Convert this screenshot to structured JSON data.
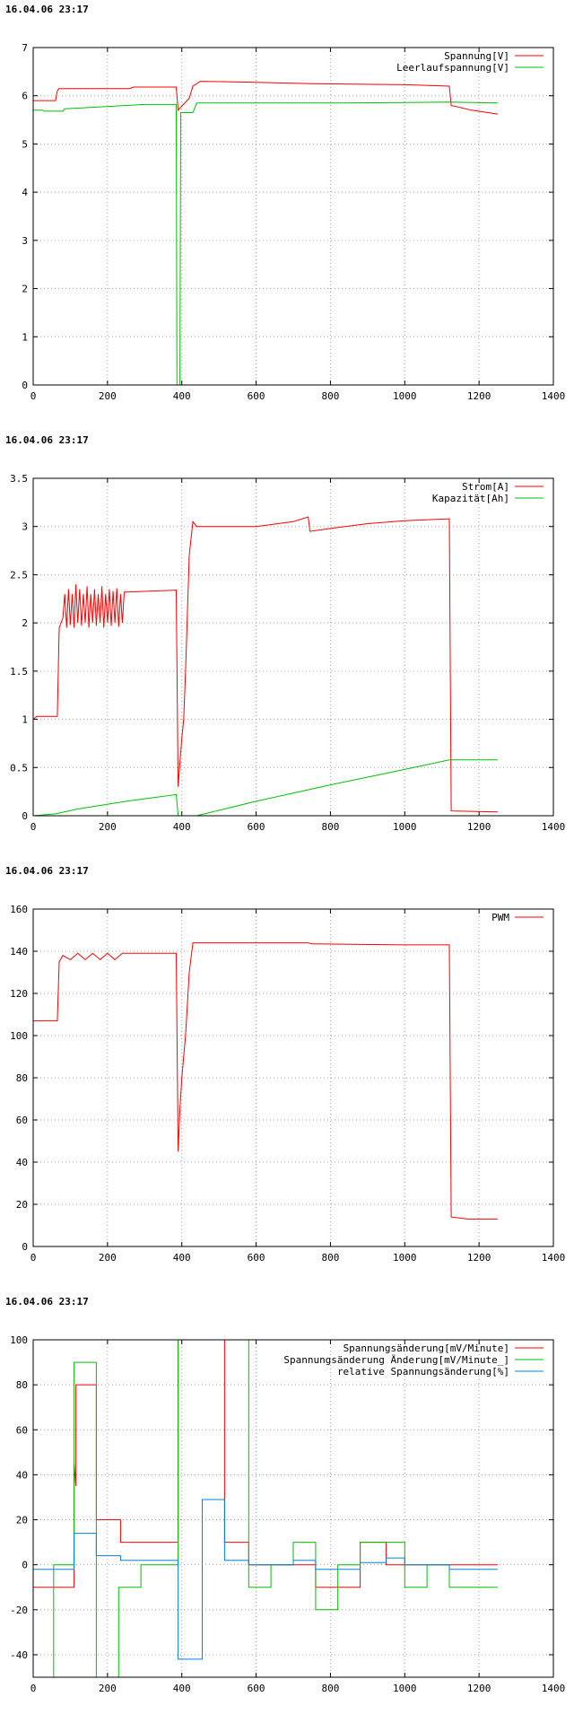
{
  "chart_data": [
    {
      "type": "line",
      "timestamp": "16.04.06 23:17",
      "xlim": [
        0,
        1400
      ],
      "ylim": [
        0,
        7
      ],
      "xticks": [
        0,
        200,
        400,
        600,
        800,
        1000,
        1200,
        1400
      ],
      "yticks": [
        0,
        1,
        2,
        3,
        4,
        5,
        6,
        7
      ],
      "legend_position": "top-right",
      "grid": true,
      "series": [
        {
          "name": "Spannung[V]",
          "color": "#ff0000",
          "points": [
            [
              0,
              5.9
            ],
            [
              60,
              5.9
            ],
            [
              65,
              6.1
            ],
            [
              70,
              6.15
            ],
            [
              260,
              6.15
            ],
            [
              270,
              6.18
            ],
            [
              385,
              6.18
            ],
            [
              390,
              5.7
            ],
            [
              420,
              5.95
            ],
            [
              430,
              6.2
            ],
            [
              450,
              6.3
            ],
            [
              600,
              6.28
            ],
            [
              750,
              6.25
            ],
            [
              1000,
              6.23
            ],
            [
              1120,
              6.2
            ],
            [
              1125,
              5.8
            ],
            [
              1180,
              5.7
            ],
            [
              1250,
              5.62
            ]
          ]
        },
        {
          "name": "Leerlaufspannung[V]",
          "color": "#00c000",
          "points": [
            [
              0,
              5.7
            ],
            [
              25,
              5.7
            ],
            [
              30,
              5.68
            ],
            [
              80,
              5.68
            ],
            [
              85,
              5.73
            ],
            [
              300,
              5.82
            ],
            [
              385,
              5.82
            ],
            [
              387,
              0
            ],
            [
              395,
              0
            ],
            [
              397,
              5.65
            ],
            [
              430,
              5.65
            ],
            [
              440,
              5.85
            ],
            [
              800,
              5.85
            ],
            [
              1000,
              5.86
            ],
            [
              1120,
              5.87
            ],
            [
              1250,
              5.85
            ]
          ]
        }
      ]
    },
    {
      "type": "line",
      "timestamp": "16.04.06 23:17",
      "xlim": [
        0,
        1400
      ],
      "ylim": [
        0,
        3.5
      ],
      "xticks": [
        0,
        200,
        400,
        600,
        800,
        1000,
        1200,
        1400
      ],
      "yticks": [
        0,
        0.5,
        1,
        1.5,
        2,
        2.5,
        3,
        3.5
      ],
      "legend_position": "top-right",
      "grid": true,
      "series": [
        {
          "name": "Strom[A]",
          "color": "#ff0000",
          "points": [
            [
              0,
              1
            ],
            [
              10,
              1.03
            ],
            [
              65,
              1.03
            ],
            [
              70,
              1.95
            ],
            [
              80,
              2.05
            ],
            [
              85,
              2.3
            ],
            [
              90,
              1.95
            ],
            [
              95,
              2.35
            ],
            [
              100,
              1.98
            ],
            [
              105,
              2.3
            ],
            [
              110,
              1.95
            ],
            [
              115,
              2.4
            ],
            [
              120,
              2.0
            ],
            [
              125,
              2.35
            ],
            [
              130,
              1.97
            ],
            [
              135,
              2.3
            ],
            [
              140,
              2.0
            ],
            [
              145,
              2.38
            ],
            [
              150,
              1.95
            ],
            [
              155,
              2.3
            ],
            [
              160,
              2.0
            ],
            [
              165,
              2.35
            ],
            [
              170,
              1.97
            ],
            [
              175,
              2.3
            ],
            [
              180,
              2.0
            ],
            [
              185,
              2.38
            ],
            [
              190,
              1.95
            ],
            [
              195,
              2.3
            ],
            [
              200,
              2.0
            ],
            [
              205,
              2.35
            ],
            [
              210,
              1.97
            ],
            [
              215,
              2.33
            ],
            [
              220,
              2.0
            ],
            [
              225,
              2.36
            ],
            [
              230,
              1.96
            ],
            [
              235,
              2.3
            ],
            [
              240,
              2.0
            ],
            [
              245,
              2.32
            ],
            [
              250,
              2.32
            ],
            [
              385,
              2.34
            ],
            [
              390,
              0.3
            ],
            [
              395,
              0.55
            ],
            [
              400,
              0.8
            ],
            [
              405,
              1.0
            ],
            [
              410,
              1.5
            ],
            [
              420,
              2.7
            ],
            [
              430,
              3.05
            ],
            [
              440,
              3.0
            ],
            [
              600,
              3.0
            ],
            [
              700,
              3.05
            ],
            [
              740,
              3.1
            ],
            [
              745,
              2.95
            ],
            [
              800,
              2.98
            ],
            [
              900,
              3.03
            ],
            [
              1000,
              3.06
            ],
            [
              1120,
              3.08
            ],
            [
              1125,
              0.05
            ],
            [
              1250,
              0.04
            ]
          ]
        },
        {
          "name": "Kapazität[Ah]",
          "color": "#00c000",
          "points": [
            [
              0,
              0
            ],
            [
              60,
              0.02
            ],
            [
              120,
              0.07
            ],
            [
              250,
              0.15
            ],
            [
              385,
              0.22
            ],
            [
              390,
              0
            ],
            [
              440,
              0
            ],
            [
              600,
              0.15
            ],
            [
              800,
              0.32
            ],
            [
              1000,
              0.48
            ],
            [
              1120,
              0.58
            ],
            [
              1250,
              0.58
            ]
          ]
        }
      ]
    },
    {
      "type": "line",
      "timestamp": "16.04.06 23:17",
      "xlim": [
        0,
        1400
      ],
      "ylim": [
        0,
        160
      ],
      "xticks": [
        0,
        200,
        400,
        600,
        800,
        1000,
        1200,
        1400
      ],
      "yticks": [
        0,
        20,
        40,
        60,
        80,
        100,
        120,
        140,
        160
      ],
      "legend_position": "top-right",
      "grid": true,
      "series": [
        {
          "name": "PWM",
          "color": "#ff0000",
          "points": [
            [
              0,
              107
            ],
            [
              65,
              107
            ],
            [
              70,
              135
            ],
            [
              80,
              138
            ],
            [
              100,
              136
            ],
            [
              120,
              139
            ],
            [
              140,
              136
            ],
            [
              160,
              139
            ],
            [
              180,
              136
            ],
            [
              200,
              139
            ],
            [
              220,
              136
            ],
            [
              240,
              139
            ],
            [
              260,
              139
            ],
            [
              385,
              139
            ],
            [
              390,
              45
            ],
            [
              395,
              65
            ],
            [
              400,
              80
            ],
            [
              410,
              100
            ],
            [
              420,
              130
            ],
            [
              430,
              144
            ],
            [
              600,
              144
            ],
            [
              740,
              144
            ],
            [
              750,
              143.5
            ],
            [
              1000,
              143
            ],
            [
              1120,
              143
            ],
            [
              1125,
              14
            ],
            [
              1170,
              13
            ],
            [
              1250,
              13
            ]
          ]
        }
      ]
    },
    {
      "type": "line",
      "timestamp": "16.04.06 23:17",
      "xlim": [
        0,
        1400
      ],
      "ylim": [
        -50,
        100
      ],
      "xticks": [
        0,
        200,
        400,
        600,
        800,
        1000,
        1200,
        1400
      ],
      "yticks": [
        -40,
        -20,
        0,
        20,
        40,
        60,
        80,
        100
      ],
      "legend_position": "top-right",
      "grid": true,
      "series": [
        {
          "name": "Spannungsänderung[mV/Minute]",
          "color": "#ff0000",
          "points": [
            [
              0,
              -10
            ],
            [
              110,
              -10
            ],
            [
              110,
              45
            ],
            [
              115,
              35
            ],
            [
              115,
              80
            ],
            [
              170,
              80
            ],
            [
              170,
              20
            ],
            [
              235,
              20
            ],
            [
              235,
              10
            ],
            [
              390,
              10
            ],
            [
              390,
              100
            ],
            [
              510,
              100
            ],
            [
              515,
              100
            ],
            [
              515,
              10
            ],
            [
              580,
              10
            ],
            [
              580,
              0
            ],
            [
              760,
              0
            ],
            [
              760,
              -10
            ],
            [
              880,
              -10
            ],
            [
              880,
              10
            ],
            [
              950,
              10
            ],
            [
              950,
              0
            ],
            [
              1250,
              0
            ]
          ]
        },
        {
          "name": "Spannungsänderung Änderung[mV/Minute_]",
          "color": "#00c000",
          "points": [
            [
              0,
              -50
            ],
            [
              55,
              -50
            ],
            [
              55,
              0
            ],
            [
              110,
              0
            ],
            [
              110,
              90
            ],
            [
              170,
              90
            ],
            [
              170,
              -50
            ],
            [
              230,
              -50
            ],
            [
              230,
              -10
            ],
            [
              290,
              -10
            ],
            [
              290,
              0
            ],
            [
              390,
              0
            ],
            [
              390,
              100
            ],
            [
              580,
              100
            ],
            [
              580,
              -10
            ],
            [
              640,
              -10
            ],
            [
              640,
              0
            ],
            [
              700,
              0
            ],
            [
              700,
              10
            ],
            [
              760,
              10
            ],
            [
              760,
              -20
            ],
            [
              820,
              -20
            ],
            [
              820,
              0
            ],
            [
              880,
              0
            ],
            [
              880,
              10
            ],
            [
              1000,
              10
            ],
            [
              1000,
              -10
            ],
            [
              1060,
              -10
            ],
            [
              1060,
              0
            ],
            [
              1120,
              0
            ],
            [
              1120,
              -10
            ],
            [
              1250,
              -10
            ]
          ]
        },
        {
          "name": "relative Spannungsänderung[%]",
          "color": "#0080e0",
          "points": [
            [
              0,
              -2
            ],
            [
              110,
              -2
            ],
            [
              110,
              14
            ],
            [
              170,
              14
            ],
            [
              170,
              4
            ],
            [
              235,
              4
            ],
            [
              235,
              2
            ],
            [
              390,
              2
            ],
            [
              390,
              -42
            ],
            [
              455,
              -42
            ],
            [
              455,
              29
            ],
            [
              515,
              29
            ],
            [
              515,
              2
            ],
            [
              580,
              2
            ],
            [
              580,
              0
            ],
            [
              700,
              0
            ],
            [
              700,
              2
            ],
            [
              760,
              2
            ],
            [
              760,
              -2
            ],
            [
              880,
              -2
            ],
            [
              880,
              1
            ],
            [
              950,
              1
            ],
            [
              950,
              3
            ],
            [
              1000,
              3
            ],
            [
              1000,
              0
            ],
            [
              1120,
              0
            ],
            [
              1120,
              -2
            ],
            [
              1250,
              -2
            ]
          ]
        }
      ]
    }
  ]
}
